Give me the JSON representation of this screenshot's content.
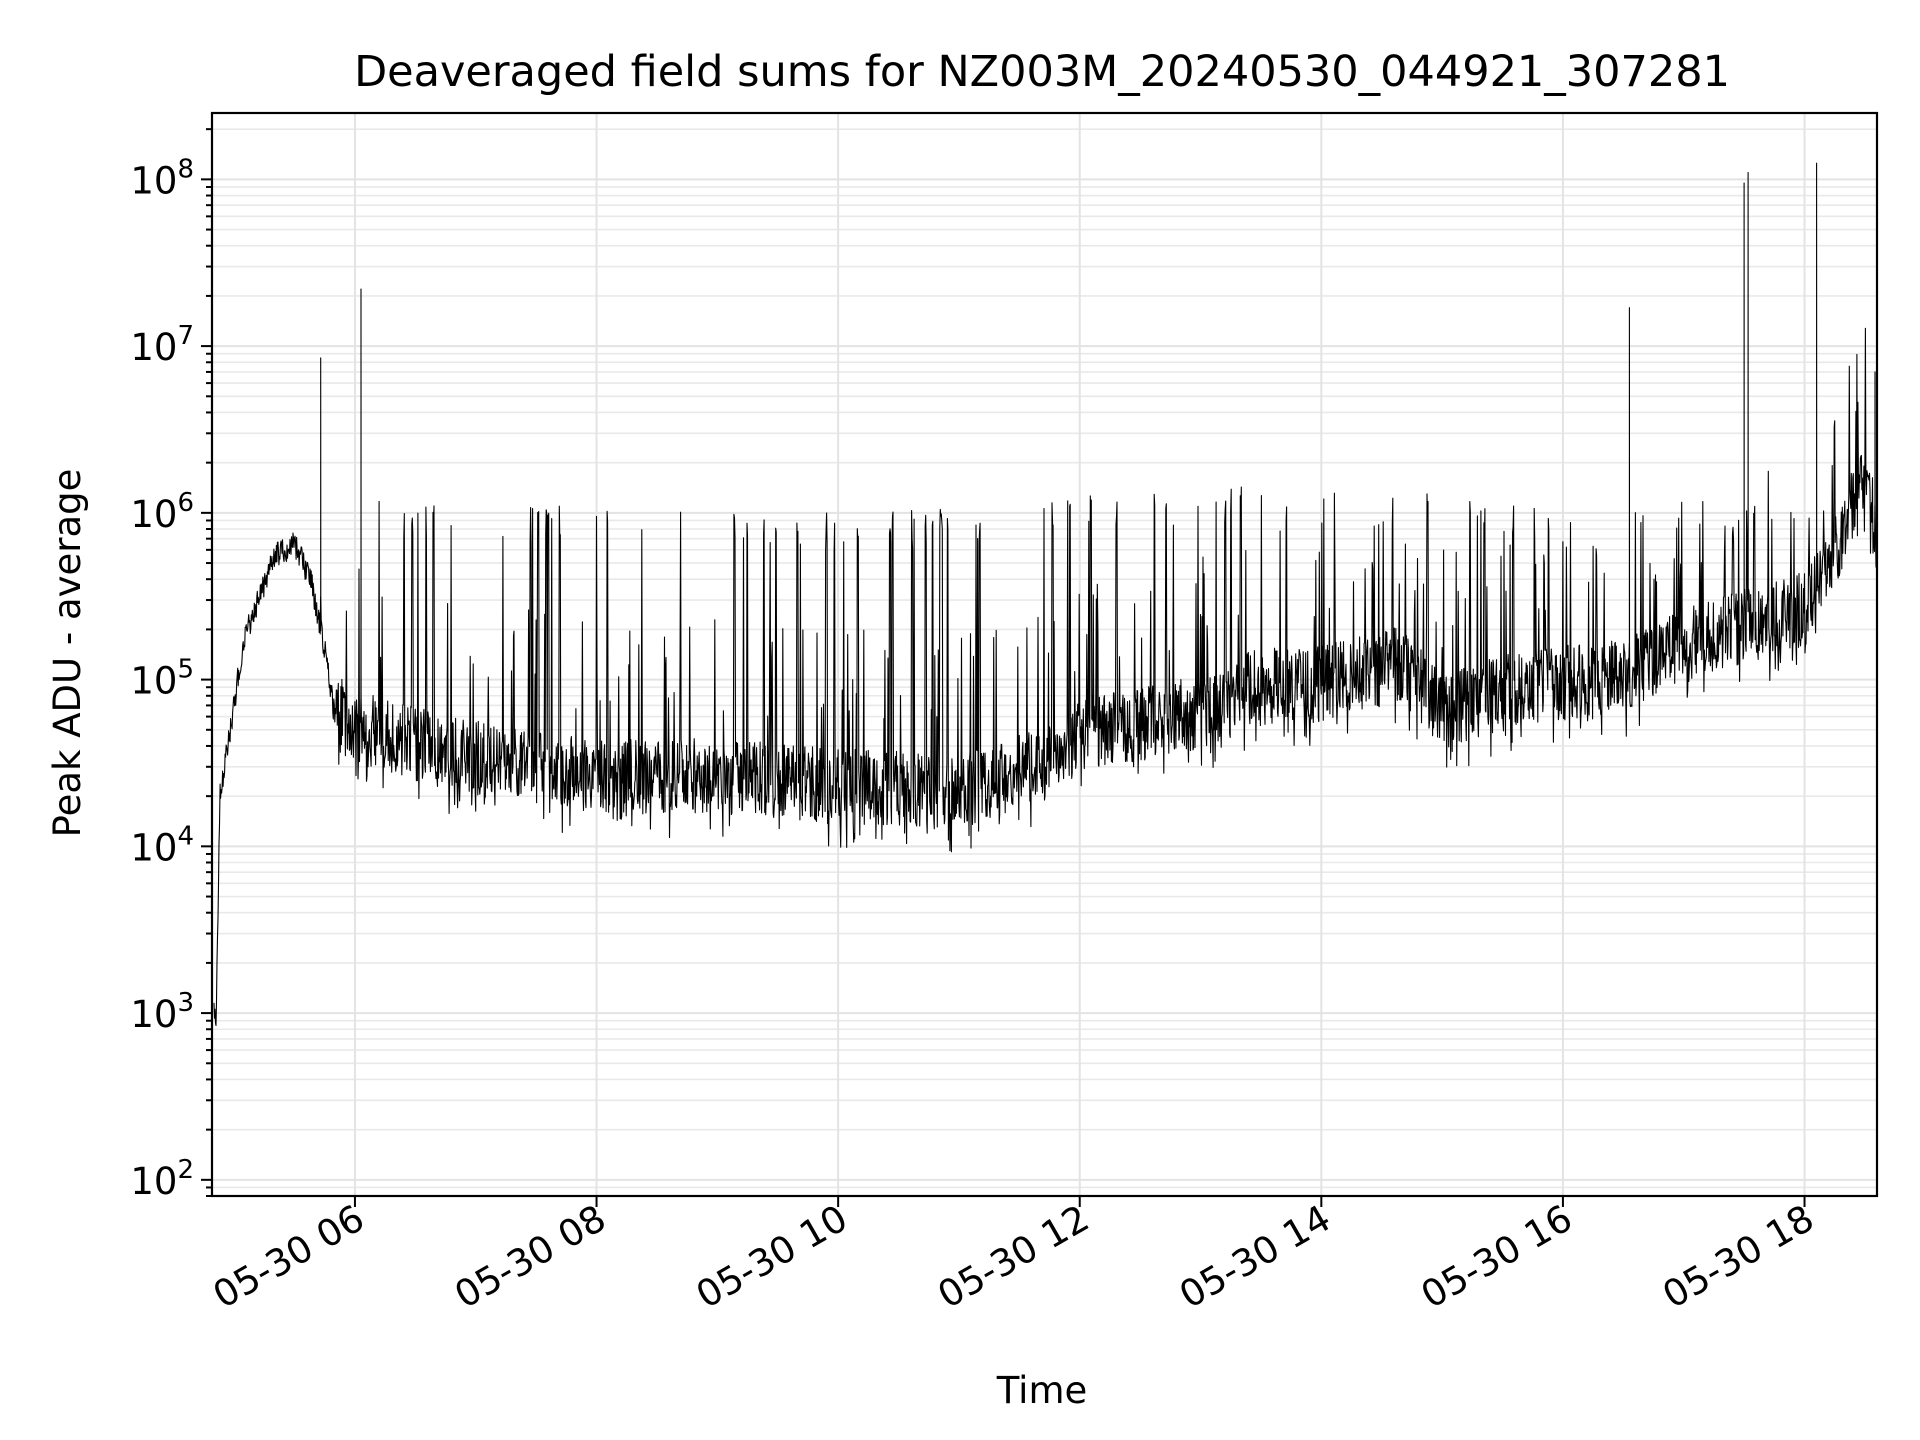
{
  "chart_data": {
    "type": "line",
    "title": "Deaveraged field sums for NZ003M_20240530_044921_307281",
    "xlabel": "Time",
    "ylabel": "Peak ADU - average",
    "x_scale": "time",
    "y_scale": "log",
    "xlim": [
      "05-30 04:49",
      "05-30 18:36"
    ],
    "ylim": [
      80,
      250000000
    ],
    "grid": "on (major and minor)",
    "line_color": "#000000",
    "x_ticks": [
      {
        "label": "05-30 06",
        "time": "05-30 06:00"
      },
      {
        "label": "05-30 08",
        "time": "05-30 08:00"
      },
      {
        "label": "05-30 10",
        "time": "05-30 10:00"
      },
      {
        "label": "05-30 12",
        "time": "05-30 12:00"
      },
      {
        "label": "05-30 14",
        "time": "05-30 14:00"
      },
      {
        "label": "05-30 16",
        "time": "05-30 16:00"
      },
      {
        "label": "05-30 18",
        "time": "05-30 18:00"
      }
    ],
    "y_ticks": [
      {
        "base": "10",
        "exp": "2",
        "value": 100
      },
      {
        "base": "10",
        "exp": "3",
        "value": 1000
      },
      {
        "base": "10",
        "exp": "4",
        "value": 10000
      },
      {
        "base": "10",
        "exp": "5",
        "value": 100000
      },
      {
        "base": "10",
        "exp": "6",
        "value": 1000000
      },
      {
        "base": "10",
        "exp": "7",
        "value": 10000000
      },
      {
        "base": "10",
        "exp": "8",
        "value": 100000000
      }
    ],
    "series": [
      {
        "baseline": [
          {
            "x": "05-30 04:50",
            "y": 1200
          },
          {
            "x": "05-30 04:51",
            "y": 800
          },
          {
            "x": "05-30 04:53",
            "y": 20000
          },
          {
            "x": "05-30 04:58",
            "y": 50000
          },
          {
            "x": "05-30 05:05",
            "y": 180000
          },
          {
            "x": "05-30 05:12",
            "y": 300000
          },
          {
            "x": "05-30 05:20",
            "y": 550000
          },
          {
            "x": "05-30 05:30",
            "y": 650000
          },
          {
            "x": "05-30 05:38",
            "y": 400000
          },
          {
            "x": "05-30 05:45",
            "y": 150000
          },
          {
            "x": "05-30 05:50",
            "y": 60000
          },
          {
            "x": "05-30 06:10",
            "y": 45000
          },
          {
            "x": "05-30 07:00",
            "y": 32000
          },
          {
            "x": "05-30 08:00",
            "y": 25000
          },
          {
            "x": "05-30 09:00",
            "y": 25000
          },
          {
            "x": "05-30 10:00",
            "y": 22000
          },
          {
            "x": "05-30 11:00",
            "y": 20000
          },
          {
            "x": "05-30 11:40",
            "y": 30000
          },
          {
            "x": "05-30 12:00",
            "y": 45000
          },
          {
            "x": "05-30 13:00",
            "y": 60000
          },
          {
            "x": "05-30 13:30",
            "y": 90000
          },
          {
            "x": "05-30 14:00",
            "y": 90000
          },
          {
            "x": "05-30 14:40",
            "y": 120000
          },
          {
            "x": "05-30 15:00",
            "y": 60000
          },
          {
            "x": "05-30 15:30",
            "y": 80000
          },
          {
            "x": "05-30 16:00",
            "y": 90000
          },
          {
            "x": "05-30 16:30",
            "y": 100000
          },
          {
            "x": "05-30 17:00",
            "y": 150000
          },
          {
            "x": "05-30 17:30",
            "y": 200000
          },
          {
            "x": "05-30 18:00",
            "y": 250000
          },
          {
            "x": "05-30 18:20",
            "y": 700000
          },
          {
            "x": "05-30 18:30",
            "y": 1500000
          },
          {
            "x": "05-30 18:36",
            "y": 600000
          }
        ],
        "burst_ceiling": [
          {
            "x": "05-30 05:10",
            "y": 700000
          },
          {
            "x": "05-30 06:00",
            "y": 1200000
          },
          {
            "x": "05-30 08:00",
            "y": 1100000
          },
          {
            "x": "05-30 10:00",
            "y": 1000000
          },
          {
            "x": "05-30 11:30",
            "y": 1100000
          },
          {
            "x": "05-30 12:30",
            "y": 1400000
          },
          {
            "x": "05-30 14:00",
            "y": 1500000
          },
          {
            "x": "05-30 15:00",
            "y": 1300000
          },
          {
            "x": "05-30 16:00",
            "y": 1000000
          },
          {
            "x": "05-30 17:00",
            "y": 800000
          },
          {
            "x": "05-30 18:00",
            "y": 1500000
          },
          {
            "x": "05-30 18:36",
            "y": 2000000
          }
        ],
        "spikes": [
          {
            "x": "05-30 05:43",
            "y": 8500000
          },
          {
            "x": "05-30 06:03",
            "y": 22000000
          },
          {
            "x": "05-30 16:33",
            "y": 17000000
          },
          {
            "x": "05-30 17:30",
            "y": 95000000
          },
          {
            "x": "05-30 17:32",
            "y": 110000000
          },
          {
            "x": "05-30 18:06",
            "y": 125000000
          },
          {
            "x": "05-30 18:35",
            "y": 7000000
          }
        ]
      }
    ]
  }
}
